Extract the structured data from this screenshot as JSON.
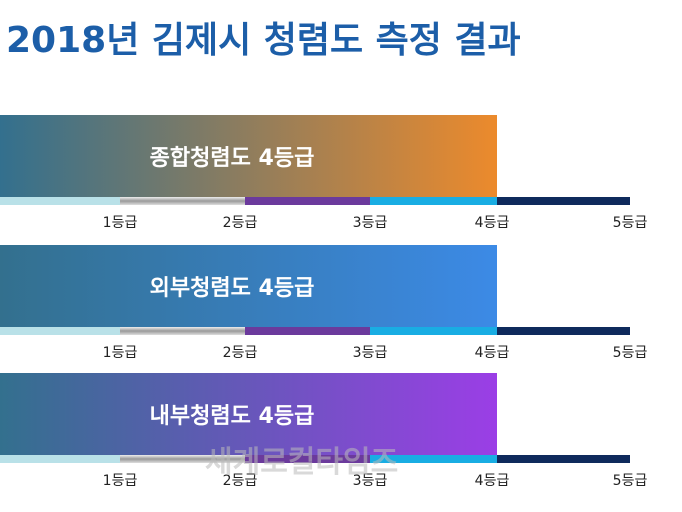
{
  "title": "2018년 김제시 청렴도 측정 결과",
  "panels": [
    {
      "label": "종합청렴도 4등급"
    },
    {
      "label": "외부청렴도 4등급"
    },
    {
      "label": "내부청렴도 4등급"
    }
  ],
  "scale": [
    "1등급",
    "2등급",
    "3등급",
    "4등급",
    "5등급"
  ],
  "watermark": "세계로컬타임즈"
}
